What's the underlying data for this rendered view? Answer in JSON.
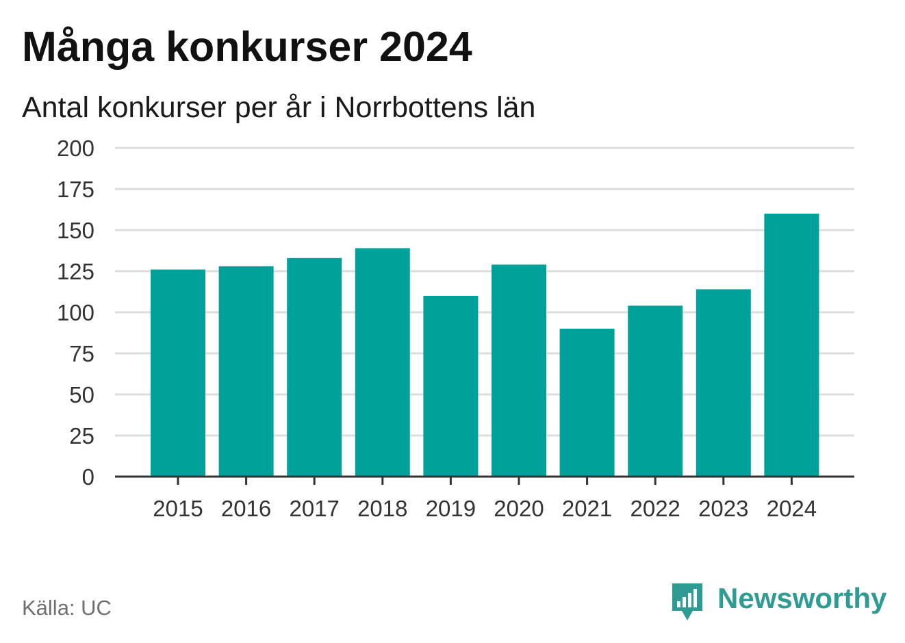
{
  "header": {
    "title": "Många konkurser 2024",
    "subtitle": "Antal konkurser per år i Norrbottens län"
  },
  "footer": {
    "source": "Källa: UC",
    "brand": "Newsworthy",
    "brand_icon": "newsworthy-logo-icon",
    "brand_color": "#2e9c92"
  },
  "chart_data": {
    "type": "bar",
    "title": "Många konkurser 2024",
    "subtitle": "Antal konkurser per år i Norrbottens län",
    "xlabel": "",
    "ylabel": "",
    "categories": [
      "2015",
      "2016",
      "2017",
      "2018",
      "2019",
      "2020",
      "2021",
      "2022",
      "2023",
      "2024"
    ],
    "values": [
      126,
      128,
      133,
      139,
      110,
      129,
      90,
      104,
      114,
      160
    ],
    "ylim": [
      0,
      200
    ],
    "yticks": [
      0,
      25,
      50,
      75,
      100,
      125,
      150,
      175,
      200
    ],
    "grid": true,
    "legend": "none",
    "bar_color": "#00a19a",
    "grid_color": "#dddddd",
    "axis_color": "#333333"
  }
}
